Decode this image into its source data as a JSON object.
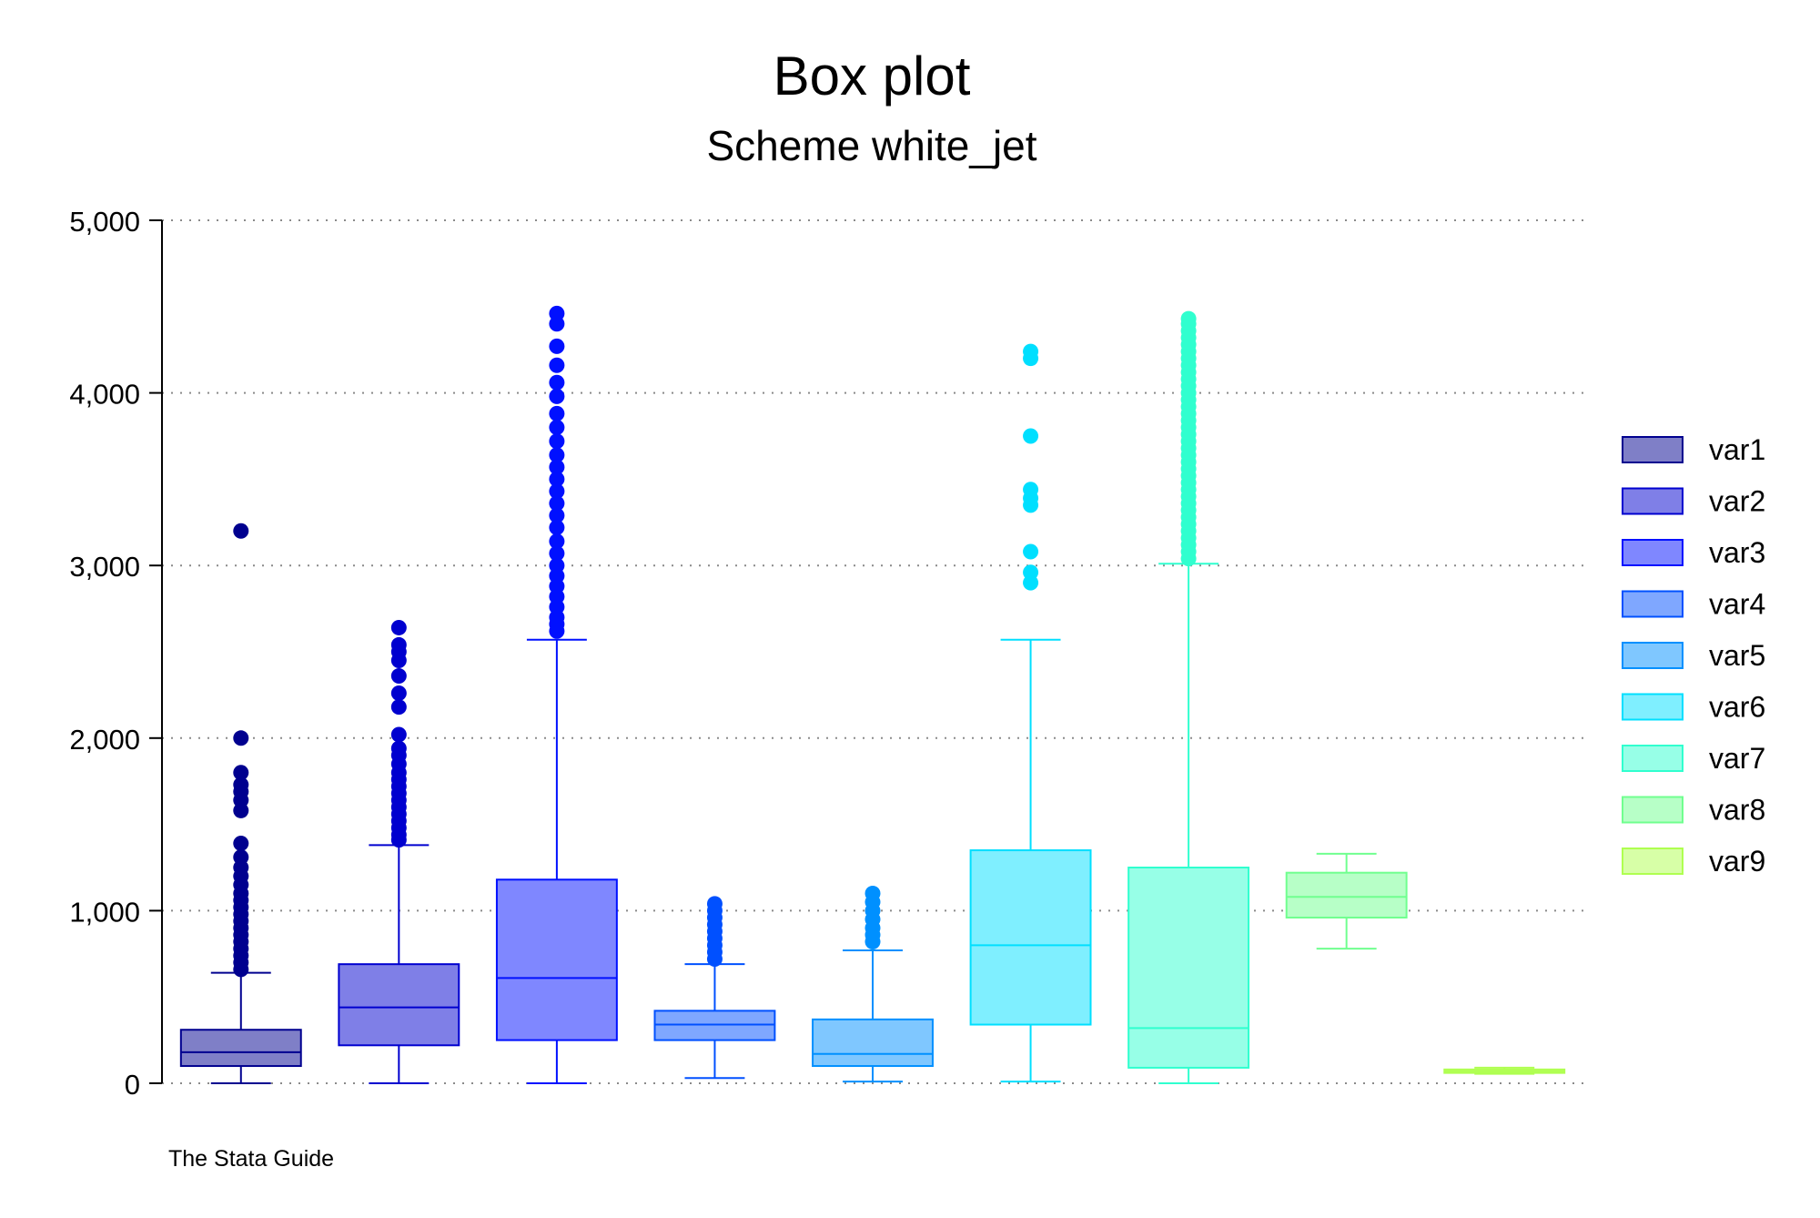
{
  "chart_data": {
    "type": "box",
    "title": "Box plot",
    "subtitle": "Scheme white_jet",
    "note": "The Stata Guide",
    "ylim": [
      0,
      5000
    ],
    "yticks": [
      0,
      1000,
      2000,
      3000,
      4000,
      5000
    ],
    "ytick_labels": [
      "0",
      "1,000",
      "2,000",
      "3,000",
      "4,000",
      "5,000"
    ],
    "grid": true,
    "legend_position": "right",
    "series": [
      {
        "name": "var1",
        "color": "#00008F",
        "fill": "#7F7FC7",
        "q1": 100,
        "median": 180,
        "q3": 310,
        "whisker_low": 0,
        "whisker_high": 640,
        "outliers": [
          660,
          700,
          740,
          780,
          820,
          860,
          900,
          940,
          980,
          1020,
          1060,
          1100,
          1150,
          1200,
          1250,
          1310,
          1390,
          1580,
          1640,
          1690,
          1730,
          1800,
          2000,
          3200
        ]
      },
      {
        "name": "var2",
        "color": "#0000CF",
        "fill": "#7F7FE7",
        "q1": 220,
        "median": 440,
        "q3": 690,
        "whisker_low": 0,
        "whisker_high": 1380,
        "outliers": [
          1410,
          1440,
          1480,
          1520,
          1560,
          1600,
          1640,
          1680,
          1720,
          1760,
          1800,
          1850,
          1900,
          1940,
          2020,
          2180,
          2260,
          2360,
          2450,
          2500,
          2540,
          2640
        ]
      },
      {
        "name": "var3",
        "color": "#0010FF",
        "fill": "#7F87FF",
        "q1": 250,
        "median": 610,
        "q3": 1180,
        "whisker_low": 0,
        "whisker_high": 2570,
        "outliers": [
          2620,
          2660,
          2700,
          2760,
          2820,
          2880,
          2940,
          3000,
          3070,
          3140,
          3220,
          3290,
          3360,
          3430,
          3500,
          3570,
          3640,
          3720,
          3800,
          3880,
          3980,
          4060,
          4160,
          4270,
          4400,
          4460
        ]
      },
      {
        "name": "var4",
        "color": "#0050FF",
        "fill": "#7FA7FF",
        "q1": 250,
        "median": 340,
        "q3": 420,
        "whisker_low": 30,
        "whisker_high": 690,
        "outliers": [
          720,
          760,
          800,
          840,
          880,
          920,
          960,
          1000,
          1040
        ]
      },
      {
        "name": "var5",
        "color": "#0090FF",
        "fill": "#7FC7FF",
        "q1": 100,
        "median": 170,
        "q3": 370,
        "whisker_low": 10,
        "whisker_high": 770,
        "outliers": [
          820,
          860,
          900,
          950,
          1000,
          1050,
          1100
        ]
      },
      {
        "name": "var6",
        "color": "#00DFFF",
        "fill": "#7FEFFF",
        "q1": 340,
        "median": 800,
        "q3": 1350,
        "whisker_low": 10,
        "whisker_high": 2570,
        "outliers": [
          2900,
          2960,
          3080,
          3350,
          3390,
          3440,
          3750,
          4200,
          4240
        ]
      },
      {
        "name": "var7",
        "color": "#30FFCF",
        "fill": "#97FFE7",
        "q1": 90,
        "median": 320,
        "q3": 1250,
        "whisker_low": 0,
        "whisker_high": 3010,
        "outliers": [
          3040,
          3080,
          3120,
          3160,
          3200,
          3240,
          3280,
          3320,
          3360,
          3400,
          3440,
          3480,
          3520,
          3560,
          3600,
          3640,
          3680,
          3720,
          3760,
          3800,
          3840,
          3880,
          3920,
          3960,
          4000,
          4040,
          4080,
          4120,
          4160,
          4200,
          4240,
          4280,
          4320,
          4360,
          4400,
          4430
        ]
      },
      {
        "name": "var8",
        "color": "#70FF8F",
        "fill": "#B7FFC7",
        "q1": 960,
        "median": 1080,
        "q3": 1220,
        "whisker_low": 780,
        "whisker_high": 1330,
        "outliers": []
      },
      {
        "name": "var9",
        "color": "#AFFF50",
        "fill": "#D7FFA7",
        "q1": 60,
        "median": 70,
        "q3": 80,
        "whisker_low": 55,
        "whisker_high": 90,
        "outliers": []
      }
    ]
  }
}
